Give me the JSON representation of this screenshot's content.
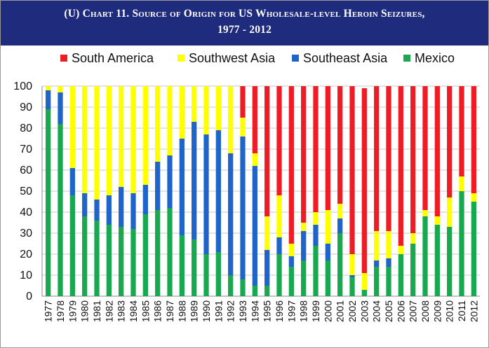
{
  "title": {
    "line1": "(U) Chart 11. Source of Origin for US Wholesale-level Heroin Seizures,",
    "line2": "1977 - 2012"
  },
  "colors": {
    "title_bg": "#1f2c7e",
    "South America": "#ee1c24",
    "Southwest Asia": "#ffff00",
    "Southeast Asia": "#1f64c8",
    "Mexico": "#18a84f"
  },
  "legend": [
    {
      "name": "South America",
      "color": "#ee1c24"
    },
    {
      "name": "Southwest Asia",
      "color": "#ffff00"
    },
    {
      "name": "Southeast Asia",
      "color": "#1f64c8"
    },
    {
      "name": "Mexico",
      "color": "#18a84f"
    }
  ],
  "chart_data": {
    "type": "bar",
    "stacked": true,
    "title": "(U) Chart 11. Source of Origin for US Wholesale-level Heroin Seizures, 1977 - 2012",
    "xlabel": "",
    "ylabel": "",
    "ylim": [
      0,
      100
    ],
    "yticks": [
      0,
      10,
      20,
      30,
      40,
      50,
      60,
      70,
      80,
      90,
      100
    ],
    "grid": true,
    "legend_position": "top",
    "categories": [
      "1977",
      "1978",
      "1979",
      "1980",
      "1981",
      "1982",
      "1983",
      "1984",
      "1985",
      "1986",
      "1987",
      "1988",
      "1989",
      "1990",
      "1991",
      "1992",
      "1993",
      "1994",
      "1995",
      "1996",
      "1997",
      "1998",
      "1999",
      "2000",
      "2001",
      "2002",
      "2003",
      "2004",
      "2005",
      "2006",
      "2007",
      "2008",
      "2009",
      "2010",
      "2011",
      "2012"
    ],
    "series": [
      {
        "name": "Mexico",
        "values": [
          89,
          82,
          48,
          38,
          36,
          34,
          33,
          32,
          39,
          41,
          42,
          29,
          27,
          20,
          21,
          10,
          8,
          5,
          5,
          20,
          14,
          17,
          24,
          17,
          30,
          9,
          3,
          14,
          14,
          20,
          25,
          38,
          34,
          33,
          50,
          45
        ]
      },
      {
        "name": "Southeast Asia",
        "values": [
          9,
          15,
          13,
          11,
          10,
          14,
          19,
          17,
          14,
          23,
          25,
          46,
          56,
          57,
          58,
          58,
          68,
          57,
          17,
          8,
          5,
          14,
          10,
          8,
          7,
          1,
          0,
          3,
          4,
          0,
          0,
          0,
          0,
          0,
          0,
          0
        ]
      },
      {
        "name": "Southwest Asia",
        "values": [
          2,
          3,
          39,
          51,
          54,
          52,
          48,
          51,
          47,
          36,
          33,
          25,
          17,
          23,
          21,
          32,
          9,
          6,
          16,
          20,
          6,
          4,
          6,
          16,
          7,
          10,
          8,
          14,
          13,
          4,
          5,
          3,
          4,
          14,
          7,
          4
        ]
      },
      {
        "name": "South America",
        "values": [
          0,
          0,
          0,
          0,
          0,
          0,
          0,
          0,
          0,
          0,
          0,
          0,
          0,
          0,
          0,
          0,
          15,
          32,
          62,
          52,
          75,
          65,
          60,
          59,
          56,
          80,
          88,
          69,
          69,
          76,
          70,
          59,
          62,
          53,
          43,
          51
        ]
      }
    ]
  }
}
